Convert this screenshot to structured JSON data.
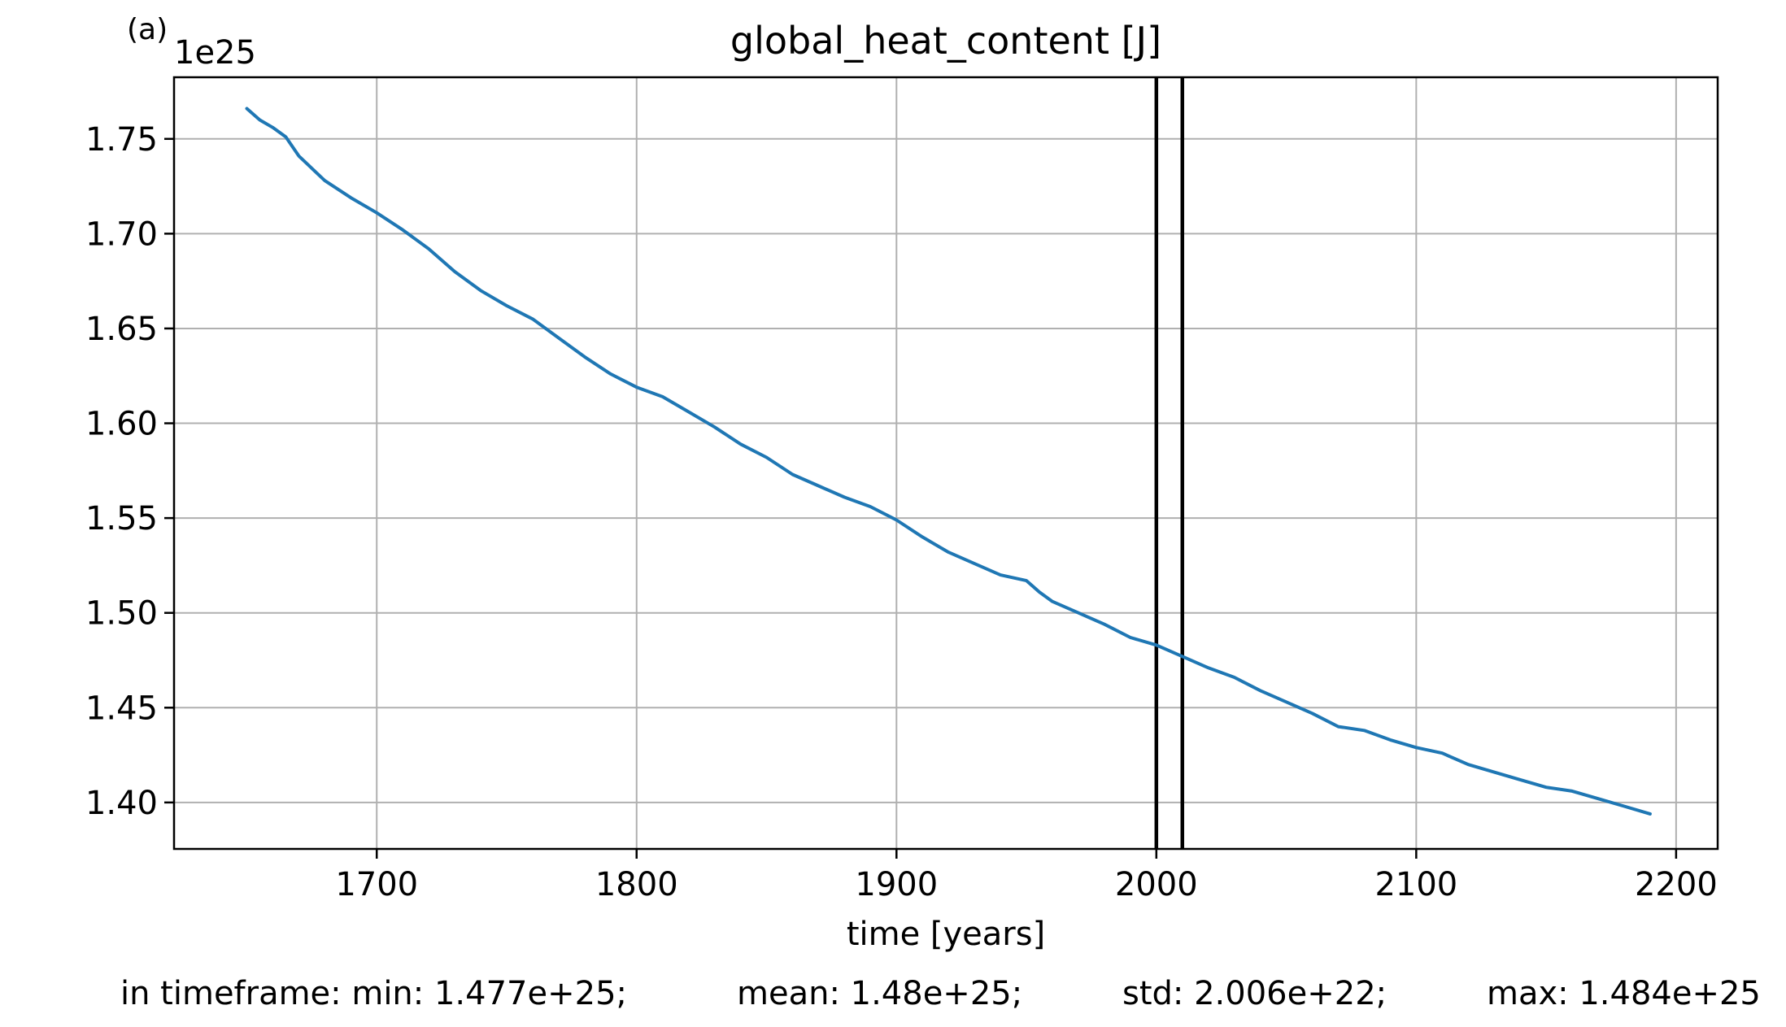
{
  "panel_label": "(a)",
  "stats": {
    "prefix": "in timeframe: min: 1.477e+25;",
    "mean": "mean: 1.48e+25;",
    "std": "std: 2.006e+22;",
    "max": "max: 1.484e+25"
  },
  "chart_data": {
    "type": "line",
    "title": "global_heat_content [J]",
    "xlabel": "time [years]",
    "ylabel": "",
    "offset_text": "1e25",
    "y_scale_factor": 1e+25,
    "xlim": [
      1622,
      2216
    ],
    "ylim": [
      1.3755,
      1.7825
    ],
    "x_ticks": [
      1700,
      1800,
      1900,
      2000,
      2100,
      2200
    ],
    "x_tick_labels": [
      "1700",
      "1800",
      "1900",
      "2000",
      "2100",
      "2200"
    ],
    "y_ticks": [
      1.4,
      1.45,
      1.5,
      1.55,
      1.6,
      1.65,
      1.7,
      1.75
    ],
    "y_tick_labels": [
      "1.40",
      "1.45",
      "1.50",
      "1.55",
      "1.60",
      "1.65",
      "1.70",
      "1.75"
    ],
    "grid": true,
    "line_color": "#1f77b4",
    "vertical_lines": [
      2000,
      2010
    ],
    "vertical_line_color": "#000000",
    "series": [
      {
        "x": [
          1650,
          1655,
          1660,
          1665,
          1670,
          1680,
          1690,
          1700,
          1710,
          1720,
          1730,
          1740,
          1750,
          1760,
          1770,
          1780,
          1790,
          1800,
          1810,
          1820,
          1830,
          1840,
          1850,
          1860,
          1870,
          1880,
          1890,
          1900,
          1910,
          1920,
          1930,
          1940,
          1950,
          1955,
          1960,
          1970,
          1980,
          1990,
          2000,
          2010,
          2020,
          2030,
          2040,
          2050,
          2060,
          2070,
          2080,
          2090,
          2100,
          2110,
          2120,
          2130,
          2140,
          2150,
          2160,
          2170,
          2180,
          2190
        ],
        "values": [
          1.766,
          1.76,
          1.756,
          1.751,
          1.741,
          1.728,
          1.719,
          1.711,
          1.702,
          1.692,
          1.68,
          1.67,
          1.662,
          1.655,
          1.645,
          1.635,
          1.626,
          1.619,
          1.614,
          1.606,
          1.598,
          1.589,
          1.582,
          1.573,
          1.567,
          1.561,
          1.556,
          1.549,
          1.54,
          1.532,
          1.526,
          1.52,
          1.517,
          1.511,
          1.506,
          1.5,
          1.494,
          1.487,
          1.483,
          1.477,
          1.471,
          1.466,
          1.459,
          1.453,
          1.447,
          1.44,
          1.438,
          1.433,
          1.429,
          1.426,
          1.42,
          1.416,
          1.412,
          1.408,
          1.406,
          1.402,
          1.398,
          1.394
        ]
      }
    ]
  }
}
